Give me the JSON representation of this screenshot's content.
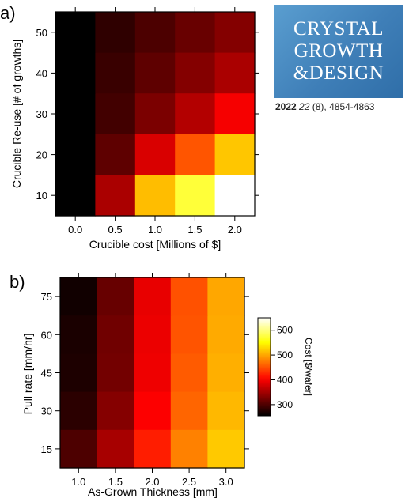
{
  "colors": {
    "frame": "#000000",
    "background": "#ffffff",
    "logo_blue": "#3f7fb8"
  },
  "logo": {
    "line1": "CRYSTAL",
    "line2": "GROWTH",
    "line3": "&DESIGN"
  },
  "citation": {
    "year": "2022",
    "volume": "22",
    "issue": "(8),",
    "pages": "4854-4863"
  },
  "chart_data": [
    {
      "panel_label": "a)",
      "type": "heatmap",
      "xlabel": "Crucible cost [Millions of $]",
      "ylabel": "Crucible Re-use [# of growths]",
      "x_ticks": [
        "0.0",
        "0.5",
        "1.0",
        "1.5",
        "2.0"
      ],
      "y_ticks": [
        "50",
        "40",
        "30",
        "20",
        "10"
      ],
      "x": [
        0.0,
        0.5,
        1.0,
        1.5,
        2.0
      ],
      "y": [
        50,
        40,
        30,
        20,
        10
      ],
      "xlim": [
        -0.25,
        2.25
      ],
      "ylim": [
        5,
        55
      ],
      "values": [
        [
          270,
          295,
          310,
          325,
          340
        ],
        [
          270,
          300,
          320,
          340,
          360
        ],
        [
          270,
          305,
          335,
          365,
          400
        ],
        [
          270,
          320,
          385,
          450,
          510
        ],
        [
          270,
          360,
          505,
          560,
          630
        ]
      ],
      "colormap": "hot",
      "color_range": [
        270,
        630
      ]
    },
    {
      "panel_label": "b)",
      "type": "heatmap",
      "xlabel": "As-Grown Thickness [mm]",
      "ylabel": "Pull rate [mm/hr]",
      "x_ticks": [
        "1.0",
        "1.5",
        "2.0",
        "2.5",
        "3.0"
      ],
      "y_ticks": [
        "75",
        "60",
        "45",
        "30",
        "15"
      ],
      "x": [
        1.0,
        1.5,
        2.0,
        2.5,
        3.0
      ],
      "y": [
        80,
        64,
        48,
        32,
        16
      ],
      "xlim": [
        0.75,
        3.25
      ],
      "ylim": [
        8,
        88
      ],
      "values": [
        [
          265,
          315,
          390,
          450,
          500
        ],
        [
          270,
          320,
          392,
          452,
          502
        ],
        [
          272,
          322,
          394,
          456,
          505
        ],
        [
          280,
          332,
          402,
          462,
          510
        ],
        [
          300,
          352,
          420,
          478,
          520
        ]
      ],
      "colormap": "hot",
      "color_range": [
        255,
        650
      ],
      "colorbar": {
        "label": "Cost [$/wafer]",
        "ticks": [
          "600",
          "500",
          "400",
          "300"
        ],
        "tick_values": [
          600,
          500,
          400,
          300
        ]
      }
    }
  ]
}
